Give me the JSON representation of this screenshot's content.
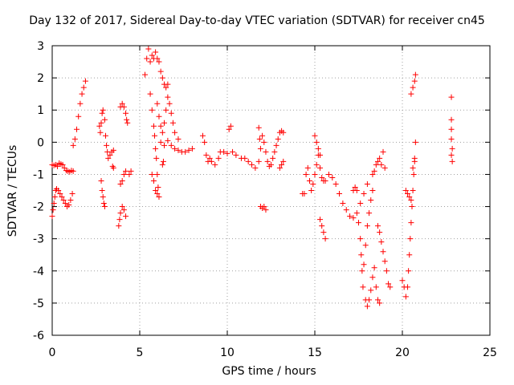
{
  "chart_data": {
    "type": "scatter",
    "title": "Day 132 of 2017, Sidereal Day-to-day VTEC variation (SDTVAR) for receiver cn45",
    "xlabel": "GPS time / hours",
    "ylabel": "SDTVAR / TECUs",
    "xlim": [
      0,
      25
    ],
    "ylim": [
      -6,
      3
    ],
    "xticks": [
      "0",
      "5",
      "10",
      "15",
      "20",
      "25"
    ],
    "yticks": [
      "-6",
      "-5",
      "-4",
      "-3",
      "-2",
      "-1",
      "0",
      "1",
      "2",
      "3"
    ],
    "grid": true,
    "marker": "+",
    "color": "#ff0000",
    "series": [
      {
        "points": [
          [
            0.0,
            -2.3
          ],
          [
            0.05,
            -2.1
          ],
          [
            0.1,
            -1.9
          ],
          [
            0.15,
            -1.7
          ],
          [
            0.2,
            -1.5
          ],
          [
            0.25,
            -1.45
          ],
          [
            0.35,
            -1.5
          ],
          [
            0.45,
            -1.6
          ],
          [
            0.55,
            -1.7
          ],
          [
            0.65,
            -1.8
          ],
          [
            0.75,
            -1.9
          ],
          [
            0.85,
            -2.0
          ],
          [
            0.95,
            -1.95
          ],
          [
            1.05,
            -1.8
          ],
          [
            1.15,
            -1.6
          ],
          [
            0.0,
            -0.7
          ],
          [
            0.1,
            -0.72
          ],
          [
            0.2,
            -0.7
          ],
          [
            0.3,
            -0.75
          ],
          [
            0.4,
            -0.65
          ],
          [
            0.5,
            -0.68
          ],
          [
            0.6,
            -0.7
          ],
          [
            0.7,
            -0.8
          ],
          [
            0.8,
            -0.88
          ],
          [
            0.9,
            -0.9
          ],
          [
            1.0,
            -0.92
          ],
          [
            1.1,
            -0.88
          ],
          [
            1.2,
            -0.9
          ],
          [
            1.2,
            -0.1
          ],
          [
            1.3,
            0.1
          ],
          [
            1.4,
            0.4
          ],
          [
            1.5,
            0.8
          ],
          [
            1.6,
            1.2
          ],
          [
            1.7,
            1.5
          ],
          [
            1.8,
            1.7
          ],
          [
            1.9,
            1.9
          ],
          [
            2.7,
            0.5
          ],
          [
            2.75,
            0.3
          ],
          [
            2.8,
            0.6
          ],
          [
            2.85,
            0.9
          ],
          [
            2.9,
            1.0
          ],
          [
            3.0,
            0.7
          ],
          [
            3.05,
            0.2
          ],
          [
            3.1,
            -0.1
          ],
          [
            3.15,
            -0.3
          ],
          [
            3.2,
            -0.5
          ],
          [
            3.3,
            -0.4
          ],
          [
            3.4,
            -0.3
          ],
          [
            3.5,
            -0.25
          ],
          [
            2.8,
            -1.2
          ],
          [
            2.85,
            -1.5
          ],
          [
            2.9,
            -1.7
          ],
          [
            2.95,
            -1.9
          ],
          [
            3.0,
            -2.0
          ],
          [
            3.5,
            -0.8
          ],
          [
            3.45,
            -0.75
          ],
          [
            3.8,
            -2.6
          ],
          [
            3.85,
            -2.4
          ],
          [
            3.9,
            -2.2
          ],
          [
            4.0,
            -2.0
          ],
          [
            4.1,
            -2.1
          ],
          [
            4.2,
            -2.3
          ],
          [
            3.9,
            -1.3
          ],
          [
            4.0,
            -1.2
          ],
          [
            4.1,
            -1.0
          ],
          [
            4.2,
            -0.9
          ],
          [
            4.4,
            -1.0
          ],
          [
            4.5,
            -0.9
          ],
          [
            3.9,
            1.1
          ],
          [
            4.0,
            1.2
          ],
          [
            4.1,
            1.1
          ],
          [
            4.2,
            0.9
          ],
          [
            4.25,
            0.7
          ],
          [
            4.3,
            0.6
          ],
          [
            5.3,
            2.1
          ],
          [
            5.4,
            2.6
          ],
          [
            5.5,
            2.9
          ],
          [
            5.6,
            2.5
          ],
          [
            5.7,
            2.7
          ],
          [
            5.8,
            2.6
          ],
          [
            5.9,
            2.8
          ],
          [
            6.0,
            2.6
          ],
          [
            6.1,
            2.5
          ],
          [
            6.2,
            2.2
          ],
          [
            6.3,
            2.0
          ],
          [
            6.4,
            1.8
          ],
          [
            6.5,
            1.7
          ],
          [
            6.6,
            1.8
          ],
          [
            5.6,
            1.5
          ],
          [
            5.7,
            1.0
          ],
          [
            5.8,
            0.5
          ],
          [
            5.85,
            0.2
          ],
          [
            5.9,
            -0.2
          ],
          [
            5.95,
            -0.5
          ],
          [
            6.0,
            -1.0
          ],
          [
            6.05,
            -1.4
          ],
          [
            6.1,
            -1.7
          ],
          [
            5.7,
            -1.0
          ],
          [
            5.8,
            -1.2
          ],
          [
            5.9,
            -1.5
          ],
          [
            6.0,
            -1.6
          ],
          [
            6.3,
            -0.7
          ],
          [
            6.35,
            -0.6
          ],
          [
            6.0,
            1.2
          ],
          [
            6.1,
            0.8
          ],
          [
            6.2,
            0.5
          ],
          [
            6.3,
            0.3
          ],
          [
            6.4,
            0.6
          ],
          [
            6.5,
            1.0
          ],
          [
            6.6,
            1.4
          ],
          [
            6.7,
            1.2
          ],
          [
            6.8,
            0.9
          ],
          [
            6.9,
            0.6
          ],
          [
            7.0,
            0.3
          ],
          [
            7.2,
            0.1
          ],
          [
            6.2,
            0.0
          ],
          [
            6.4,
            -0.1
          ],
          [
            6.6,
            0.05
          ],
          [
            6.8,
            -0.1
          ],
          [
            7.0,
            -0.2
          ],
          [
            7.2,
            -0.25
          ],
          [
            7.4,
            -0.3
          ],
          [
            7.6,
            -0.3
          ],
          [
            7.8,
            -0.25
          ],
          [
            8.0,
            -0.2
          ],
          [
            8.6,
            0.2
          ],
          [
            8.7,
            0.0
          ],
          [
            8.8,
            -0.4
          ],
          [
            8.9,
            -0.6
          ],
          [
            9.0,
            -0.5
          ],
          [
            9.1,
            -0.6
          ],
          [
            9.3,
            -0.7
          ],
          [
            9.5,
            -0.5
          ],
          [
            9.6,
            -0.3
          ],
          [
            9.8,
            -0.3
          ],
          [
            10.0,
            -0.35
          ],
          [
            10.1,
            0.4
          ],
          [
            10.2,
            0.5
          ],
          [
            10.3,
            -0.3
          ],
          [
            10.5,
            -0.4
          ],
          [
            10.8,
            -0.5
          ],
          [
            11.0,
            -0.5
          ],
          [
            11.2,
            -0.6
          ],
          [
            11.4,
            -0.7
          ],
          [
            11.6,
            -0.8
          ],
          [
            11.8,
            -0.6
          ],
          [
            11.9,
            -0.2
          ],
          [
            12.0,
            0.2
          ],
          [
            12.1,
            0.0
          ],
          [
            12.2,
            -0.3
          ],
          [
            12.3,
            -0.6
          ],
          [
            12.4,
            -0.75
          ],
          [
            12.5,
            -0.7
          ],
          [
            12.6,
            -0.5
          ],
          [
            11.8,
            0.45
          ],
          [
            11.85,
            0.1
          ],
          [
            11.9,
            -2.0
          ],
          [
            12.0,
            -2.05
          ],
          [
            12.1,
            -2.0
          ],
          [
            12.2,
            -2.1
          ],
          [
            12.7,
            -0.3
          ],
          [
            12.8,
            -0.1
          ],
          [
            12.9,
            0.1
          ],
          [
            13.0,
            0.3
          ],
          [
            13.1,
            0.35
          ],
          [
            13.2,
            0.3
          ],
          [
            13.0,
            -0.8
          ],
          [
            13.1,
            -0.7
          ],
          [
            13.2,
            -0.6
          ],
          [
            14.3,
            -1.6
          ],
          [
            14.4,
            -1.6
          ],
          [
            14.5,
            -1.0
          ],
          [
            14.6,
            -0.8
          ],
          [
            14.7,
            -1.2
          ],
          [
            14.8,
            -1.5
          ],
          [
            14.9,
            -1.3
          ],
          [
            15.0,
            -1.0
          ],
          [
            15.1,
            -0.7
          ],
          [
            15.2,
            -0.4
          ],
          [
            15.3,
            -0.8
          ],
          [
            15.4,
            -1.1
          ],
          [
            15.5,
            -1.2
          ],
          [
            15.0,
            0.2
          ],
          [
            15.1,
            0.0
          ],
          [
            15.2,
            -0.2
          ],
          [
            15.3,
            -0.4
          ],
          [
            15.3,
            -2.4
          ],
          [
            15.4,
            -2.6
          ],
          [
            15.5,
            -2.8
          ],
          [
            15.6,
            -3.0
          ],
          [
            15.6,
            -1.2
          ],
          [
            15.8,
            -1.0
          ],
          [
            16.0,
            -1.1
          ],
          [
            16.2,
            -1.3
          ],
          [
            16.4,
            -1.6
          ],
          [
            16.6,
            -1.9
          ],
          [
            16.8,
            -2.1
          ],
          [
            17.0,
            -2.3
          ],
          [
            17.2,
            -2.35
          ],
          [
            17.4,
            -2.2
          ],
          [
            17.6,
            -1.9
          ],
          [
            17.8,
            -1.6
          ],
          [
            18.0,
            -1.3
          ],
          [
            17.2,
            -1.5
          ],
          [
            17.3,
            -1.4
          ],
          [
            17.4,
            -1.5
          ],
          [
            17.5,
            -2.5
          ],
          [
            17.6,
            -3.0
          ],
          [
            17.65,
            -3.5
          ],
          [
            17.7,
            -4.0
          ],
          [
            17.75,
            -4.5
          ],
          [
            17.8,
            -3.8
          ],
          [
            17.9,
            -3.2
          ],
          [
            18.0,
            -2.6
          ],
          [
            18.1,
            -2.2
          ],
          [
            18.2,
            -1.8
          ],
          [
            18.3,
            -1.5
          ],
          [
            17.9,
            -4.9
          ],
          [
            18.0,
            -5.1
          ],
          [
            18.1,
            -4.9
          ],
          [
            18.2,
            -4.6
          ],
          [
            18.3,
            -4.2
          ],
          [
            18.4,
            -3.9
          ],
          [
            18.5,
            -4.5
          ],
          [
            18.6,
            -4.9
          ],
          [
            18.7,
            -5.0
          ],
          [
            18.3,
            -1.0
          ],
          [
            18.4,
            -0.9
          ],
          [
            18.5,
            -0.7
          ],
          [
            18.6,
            -0.6
          ],
          [
            18.7,
            -0.5
          ],
          [
            18.8,
            -0.7
          ],
          [
            18.9,
            -0.3
          ],
          [
            19.0,
            -0.8
          ],
          [
            18.6,
            -2.6
          ],
          [
            18.7,
            -2.8
          ],
          [
            18.8,
            -3.1
          ],
          [
            18.9,
            -3.4
          ],
          [
            19.0,
            -3.7
          ],
          [
            19.1,
            -4.0
          ],
          [
            19.2,
            -4.4
          ],
          [
            19.3,
            -4.5
          ],
          [
            20.0,
            -4.3
          ],
          [
            20.1,
            -4.5
          ],
          [
            20.2,
            -4.8
          ],
          [
            20.3,
            -4.5
          ],
          [
            20.35,
            -4.0
          ],
          [
            20.4,
            -3.5
          ],
          [
            20.45,
            -3.0
          ],
          [
            20.5,
            -2.5
          ],
          [
            20.55,
            -2.0
          ],
          [
            20.6,
            -1.5
          ],
          [
            20.65,
            -1.0
          ],
          [
            20.7,
            -0.5
          ],
          [
            20.75,
            0.0
          ],
          [
            20.2,
            -1.5
          ],
          [
            20.3,
            -1.6
          ],
          [
            20.4,
            -1.7
          ],
          [
            20.5,
            -1.8
          ],
          [
            20.6,
            -0.8
          ],
          [
            20.7,
            -0.6
          ],
          [
            20.5,
            1.5
          ],
          [
            20.6,
            1.7
          ],
          [
            20.7,
            1.9
          ],
          [
            20.75,
            2.1
          ],
          [
            22.8,
            1.4
          ],
          [
            22.8,
            0.7
          ],
          [
            22.8,
            0.4
          ],
          [
            22.8,
            0.1
          ],
          [
            22.85,
            -0.2
          ],
          [
            22.8,
            -0.4
          ],
          [
            22.85,
            -0.6
          ]
        ]
      }
    ]
  }
}
